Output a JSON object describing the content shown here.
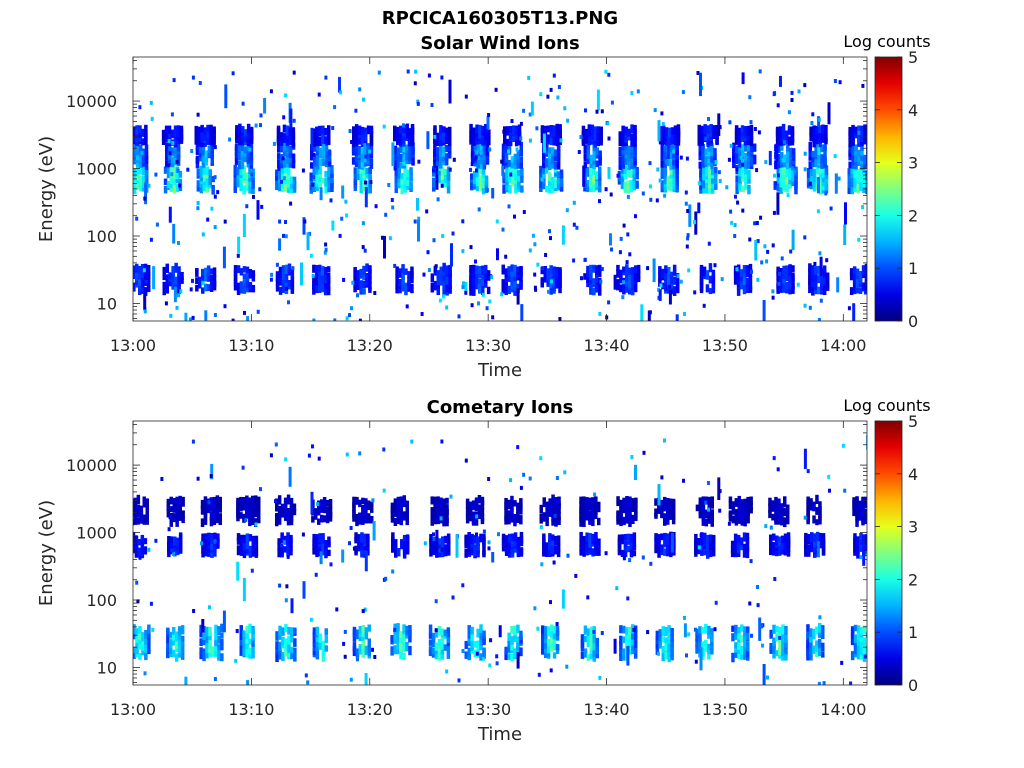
{
  "figure_title": "RPCICA160305T13.PNG",
  "chart_data": [
    {
      "type": "heatmap",
      "title": "Solar Wind Ions",
      "xlabel": "Time",
      "ylabel": "Energy (eV)",
      "x_ticks": [
        "13:00",
        "13:10",
        "13:20",
        "13:30",
        "13:40",
        "13:50",
        "14:00"
      ],
      "x_range_minutes": [
        0,
        62
      ],
      "y_ticks": [
        "10",
        "100",
        "1000",
        "10000"
      ],
      "y_scale": "log",
      "y_range_eV": [
        5.5,
        45000
      ],
      "colorbar": {
        "label": "Log counts",
        "ticks": [
          "0",
          "1",
          "2",
          "3",
          "4",
          "5"
        ],
        "range": [
          0,
          5
        ],
        "colormap": "jet"
      },
      "bands": [
        {
          "energy_eV": [
            480,
            1000
          ],
          "peak_log_counts": 2.7
        },
        {
          "energy_eV": [
            1100,
            2200
          ],
          "peak_log_counts": 1.8
        },
        {
          "energy_eV": [
            2400,
            4000
          ],
          "peak_log_counts": 1.0
        },
        {
          "energy_eV": [
            15,
            35
          ],
          "peak_log_counts": 1.2
        }
      ],
      "bursts_minutes": [
        0.3,
        3.3,
        6.0,
        9.3,
        12.8,
        15.8,
        19.3,
        22.8,
        26.0,
        29.2,
        32.0,
        35.2,
        38.7,
        41.7,
        45.2,
        48.5,
        51.5,
        55.0,
        57.8,
        61.2
      ]
    },
    {
      "type": "heatmap",
      "title": "Cometary Ions",
      "xlabel": "Time",
      "ylabel": "Energy (eV)",
      "x_ticks": [
        "13:00",
        "13:10",
        "13:20",
        "13:30",
        "13:40",
        "13:50",
        "14:00"
      ],
      "x_range_minutes": [
        0,
        62
      ],
      "y_ticks": [
        "10",
        "100",
        "1000",
        "10000"
      ],
      "y_scale": "log",
      "y_range_eV": [
        5.5,
        45000
      ],
      "colorbar": {
        "label": "Log counts",
        "ticks": [
          "0",
          "1",
          "2",
          "3",
          "4",
          "5"
        ],
        "range": [
          0,
          5
        ],
        "colormap": "jet"
      },
      "bands": [
        {
          "energy_eV": [
            14,
            40
          ],
          "peak_log_counts": 2.5
        },
        {
          "energy_eV": [
            480,
            900
          ],
          "peak_log_counts": 1.0
        },
        {
          "energy_eV": [
            1400,
            3200
          ],
          "peak_log_counts": 0.5
        }
      ],
      "bursts_minutes": [
        0.5,
        3.5,
        6.5,
        9.6,
        12.8,
        15.8,
        19.3,
        22.5,
        25.8,
        28.8,
        32.0,
        35.2,
        38.5,
        41.7,
        44.8,
        48.2,
        51.2,
        54.5,
        57.5,
        61.5
      ]
    }
  ]
}
